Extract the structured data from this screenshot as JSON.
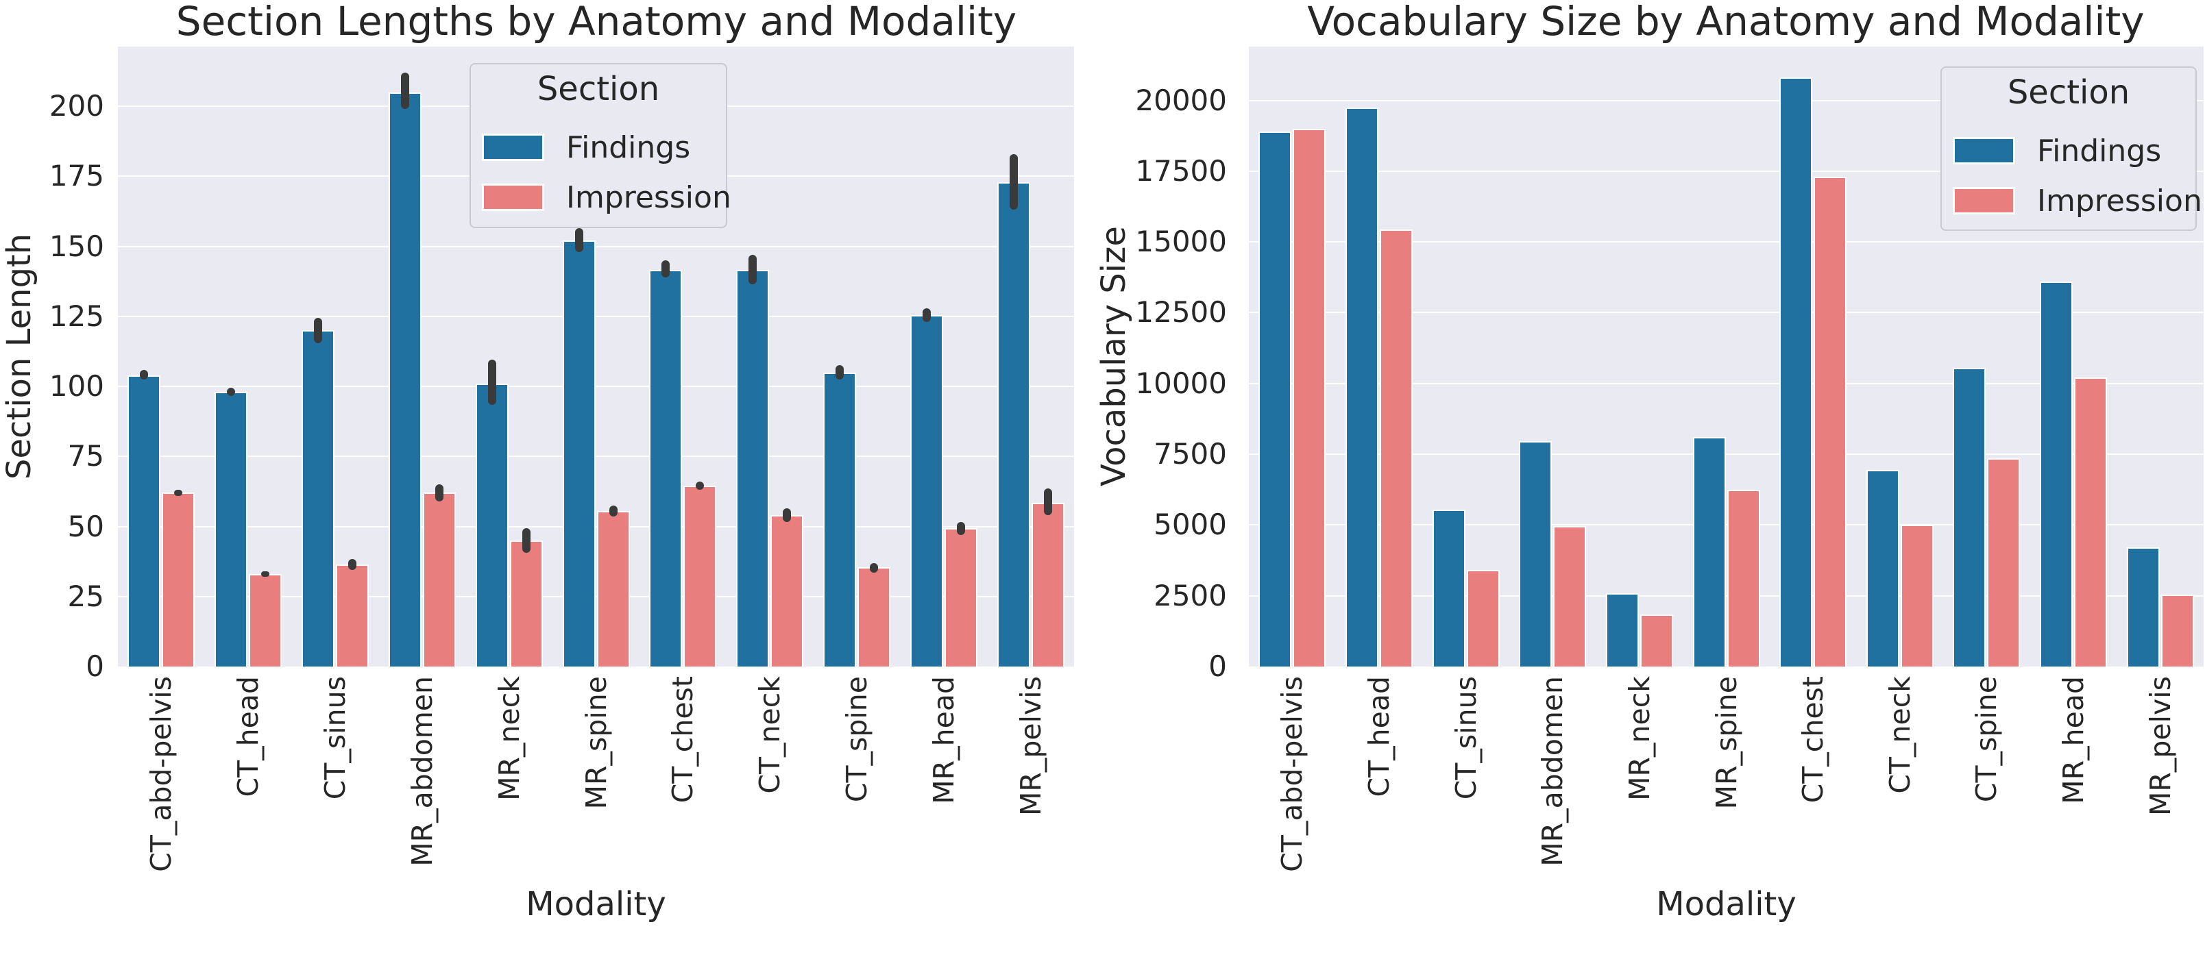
{
  "figure": {
    "background": "#ffffff",
    "text_color": "#262626",
    "axes_background": "#eaeaf2",
    "gridline_color": "#ffffff",
    "errorbar_color": "#3a3a3a"
  },
  "chart_data": [
    {
      "type": "bar",
      "title": "Section Lengths by Anatomy and Modality",
      "xlabel": "Modality",
      "ylabel": "Section Length",
      "categories": [
        "CT_abd-pelvis",
        "CT_head",
        "CT_sinus",
        "MR_abdomen",
        "MR_neck",
        "MR_spine",
        "CT_chest",
        "CT_neck",
        "CT_spine",
        "MR_head",
        "MR_pelvis"
      ],
      "series": [
        {
          "name": "Findings",
          "color": "#20719f",
          "values": [
            104,
            98,
            120,
            205,
            101,
            152,
            141.5,
            141.5,
            105,
            125.5,
            173
          ],
          "err_lo": [
            102.5,
            96.5,
            115.5,
            199,
            93.5,
            148,
            139,
            136.5,
            102.5,
            123,
            163
          ],
          "err_hi": [
            106,
            99.5,
            124.5,
            212,
            109.5,
            156.5,
            145,
            147,
            107.5,
            128,
            183
          ]
        },
        {
          "name": "Impression",
          "color": "#e87e7e",
          "values": [
            62,
            33,
            36.5,
            62,
            45,
            55.5,
            64.5,
            54,
            35.5,
            49.5,
            58.5
          ],
          "err_lo": [
            61,
            32,
            34.5,
            59,
            40.5,
            53.5,
            63,
            51.5,
            33.5,
            47,
            54
          ],
          "err_hi": [
            63,
            34,
            38.5,
            65,
            49.5,
            57.5,
            66,
            56.5,
            37,
            51.5,
            63.5
          ]
        }
      ],
      "legend": {
        "title": "Section",
        "entries": [
          "Findings",
          "Impression"
        ],
        "position": "upper center-right"
      },
      "ylim": [
        0,
        221.3
      ],
      "yticks": [
        0,
        25,
        50,
        75,
        100,
        125,
        150,
        175,
        200
      ],
      "grid": "horizontal white on light-lavender axes",
      "x_tick_rotation": 90
    },
    {
      "type": "bar",
      "title": "Vocabulary Size by Anatomy and Modality",
      "xlabel": "Modality",
      "ylabel": "Vocabulary Size",
      "categories": [
        "CT_abd-pelvis",
        "CT_head",
        "CT_sinus",
        "MR_abdomen",
        "MR_neck",
        "MR_spine",
        "CT_chest",
        "CT_neck",
        "CT_spine",
        "MR_head",
        "MR_pelvis"
      ],
      "series": [
        {
          "name": "Findings",
          "color": "#20719f",
          "values": [
            18900,
            19750,
            5550,
            7950,
            2600,
            8100,
            20800,
            6950,
            10550,
            13600,
            4200
          ]
        },
        {
          "name": "Impression",
          "color": "#e87e7e",
          "values": [
            19000,
            15450,
            3400,
            4950,
            1850,
            6250,
            17300,
            5000,
            7350,
            10200,
            2550
          ]
        }
      ],
      "legend": {
        "title": "Section",
        "entries": [
          "Findings",
          "Impression"
        ],
        "position": "upper right"
      },
      "ylim": [
        0,
        21900
      ],
      "yticks": [
        0,
        2500,
        5000,
        7500,
        10000,
        12500,
        15000,
        17500,
        20000
      ],
      "grid": "horizontal white on light-lavender axes",
      "x_tick_rotation": 90
    }
  ]
}
